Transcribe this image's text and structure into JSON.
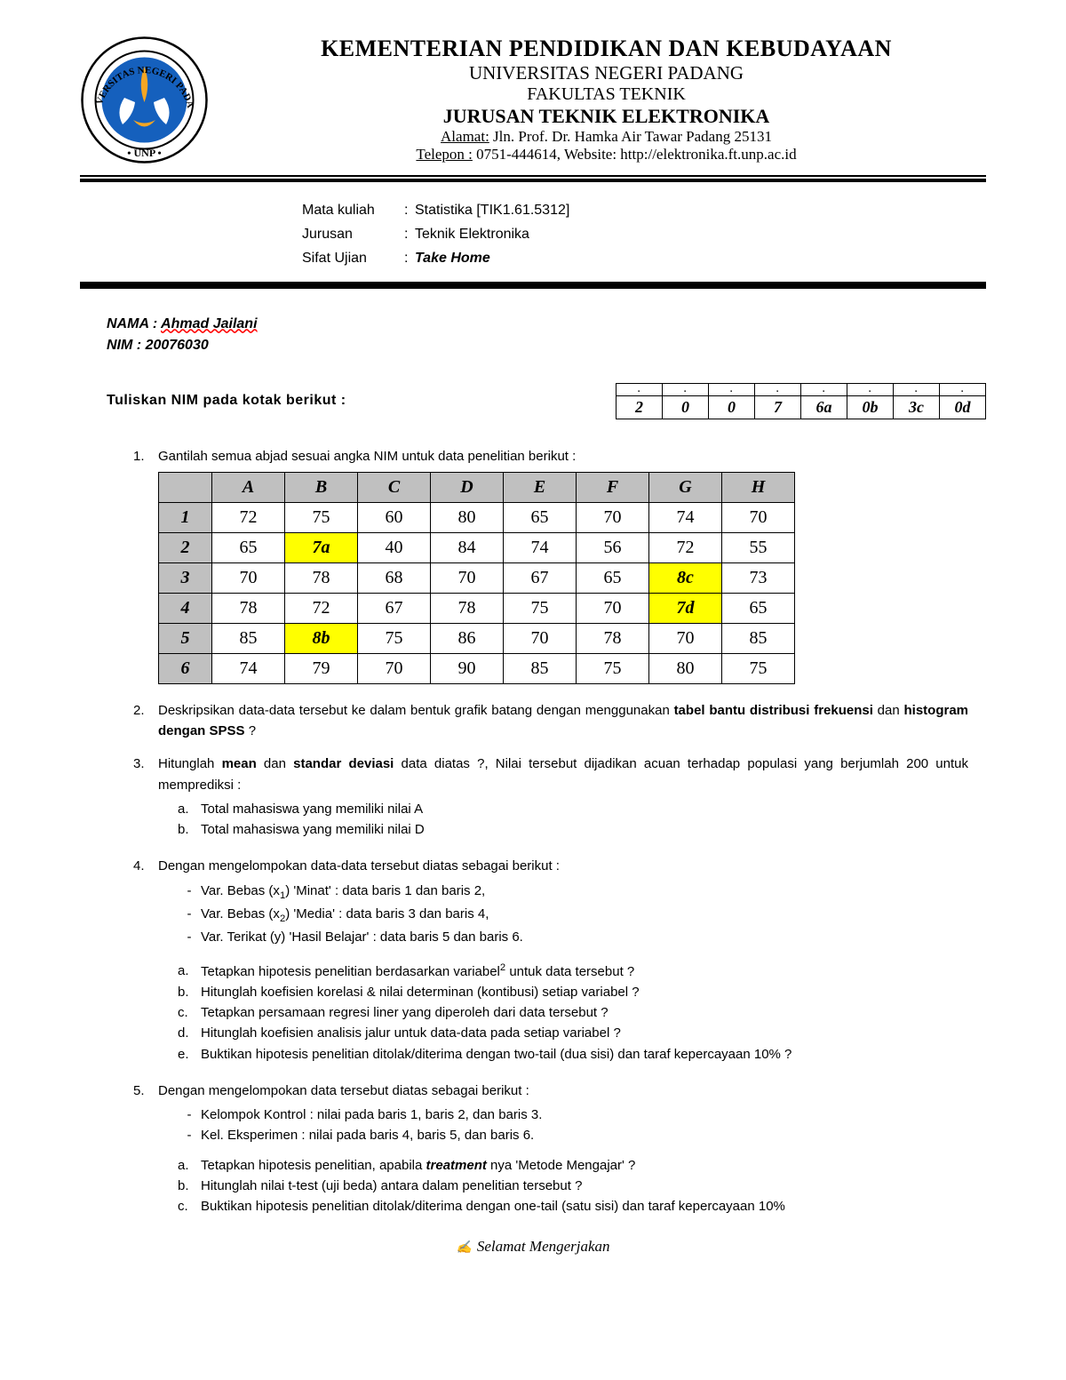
{
  "letterhead": {
    "line1": "KEMENTERIAN PENDIDIKAN DAN KEBUDAYAAN",
    "line2": "UNIVERSITAS NEGERI PADANG",
    "line3": "FAKULTAS TEKNIK",
    "line4": "JURUSAN TEKNIK ELEKTRONIKA",
    "addr_label": "Alamat:",
    "addr_value": " Jln. Prof. Dr. Hamka Air Tawar Padang 25131",
    "tel_label": "Telepon :",
    "tel_value": " 0751-444614, Website: http://elektronika.ft.unp.ac.id",
    "logo_outer_text": "UNIVERSITAS NEGERI PADANG",
    "logo_bottom": "• UNP •",
    "logo_colors": {
      "ring_bg": "#ffffff",
      "ring_border": "#000000",
      "inner_circle": "#1560bd",
      "flame": "#f5a623",
      "wings": "#ffffff"
    }
  },
  "course": {
    "mk_label": "Mata kuliah",
    "mk_value": "Statistika [TIK1.61.5312]",
    "jur_label": "Jurusan",
    "jur_value": "Teknik Elektronika",
    "sifat_label": "Sifat Ujian",
    "sifat_value": "Take Home"
  },
  "student": {
    "nama_label": "NAMA  :",
    "nama_value": "Ahmad Jailani",
    "nim_label": "NIM :",
    "nim_value": "20076030"
  },
  "nim_box": {
    "prompt": "Tuliskan NIM pada  kotak  berikut  :",
    "top_row": [
      ".",
      ".",
      ".",
      ".",
      ".",
      ".",
      ".",
      "."
    ],
    "cells": [
      "2",
      "0",
      "0",
      "7",
      "6a",
      "0b",
      "3c",
      "0d"
    ]
  },
  "q1": {
    "num": "1.",
    "text": "Gantilah semua abjad sesuai angka NIM untuk data penelitian berikut :",
    "headers": [
      "A",
      "B",
      "C",
      "D",
      "E",
      "F",
      "G",
      "H"
    ],
    "rownums": [
      "1",
      "2",
      "3",
      "4",
      "5",
      "6"
    ],
    "rows": [
      [
        "72",
        "75",
        "60",
        "80",
        "65",
        "70",
        "74",
        "70"
      ],
      [
        "65",
        "7a",
        "40",
        "84",
        "74",
        "56",
        "72",
        "55"
      ],
      [
        "70",
        "78",
        "68",
        "70",
        "67",
        "65",
        "8c",
        "73"
      ],
      [
        "78",
        "72",
        "67",
        "78",
        "75",
        "70",
        "7d",
        "65"
      ],
      [
        "85",
        "8b",
        "75",
        "86",
        "70",
        "78",
        "70",
        "85"
      ],
      [
        "74",
        "79",
        "70",
        "90",
        "85",
        "75",
        "80",
        "75"
      ]
    ],
    "highlights": [
      [
        1,
        1
      ],
      [
        2,
        6
      ],
      [
        3,
        6
      ],
      [
        4,
        1
      ]
    ],
    "highlight_color": "#ffff00",
    "header_bg": "#c0c0c0"
  },
  "q2": {
    "num": "2.",
    "pre": "Deskripsikan   data-data   tersebut   ke   dalam   bentuk   grafik   batang   dengan menggunakan ",
    "b1": "tabel bantu distribusi frekuensi",
    "mid": " dan ",
    "b2": "histogram dengan SPSS",
    "post": " ?"
  },
  "q3": {
    "num": "3.",
    "pre": "Hitunglah ",
    "b1": "mean",
    "mid1": " dan ",
    "b2": "standar deviasi",
    "post": " data diatas ?, Nilai tersebut dijadikan acuan terhadap populasi yang berjumlah 200 untuk memprediksi :",
    "a": "Total mahasiswa yang memiliki nilai  A",
    "b": "Total mahasiswa yang memiliki nilai  D"
  },
  "q4": {
    "num": "4.",
    "intro": "Dengan mengelompokan data-data tersebut diatas sebagai berikut :",
    "d1a": "Var. Bebas (x",
    "d1b": ") 'Minat'   : data baris 1 dan baris 2,",
    "d2a": "Var. Bebas (x",
    "d2b": ") 'Media' : data baris 3 dan baris 4,",
    "d3": "Var. Terikat (y) 'Hasil Belajar' : data baris 5 dan baris 6.",
    "a_pre": "Tetapkan hipotesis penelitian berdasarkan variabel",
    "a_post": " untuk data tersebut ?",
    "b": "Hitunglah koefisien korelasi & nilai determinan (kontibusi) setiap variabel ?",
    "c": "Tetapkan persamaan regresi liner yang diperoleh dari data tersebut ?",
    "d": "Hitunglah koefisien analisis jalur untuk data-data pada setiap variabel ?",
    "e": "Buktikan hipotesis penelitian ditolak/diterima dengan two-tail (dua sisi) dan taraf kepercayaan 10% ?"
  },
  "q5": {
    "num": "5.",
    "intro": "Dengan mengelompokan data tersebut diatas sebagai berikut :",
    "d1": "Kelompok Kontrol : nilai pada baris 1, baris 2, dan baris 3.",
    "d2": "Kel. Eksperimen    : nilai pada baris 4, baris 5, dan baris 6.",
    "a_pre": "Tetapkan hipotesis penelitian, apabila ",
    "a_b": "treatment",
    "a_post": " nya 'Metode Mengajar' ?",
    "b": "Hitunglah nilai t-test (uji beda) antara dalam penelitian tersebut ?",
    "c": "Buktikan hipotesis penelitian ditolak/diterima dengan one-tail (satu sisi) dan taraf kepercayaan 10%"
  },
  "footer": {
    "sig": "✍",
    "text": "Selamat  Mengerjakan"
  },
  "marks": {
    "a": "a.",
    "b": "b.",
    "c": "c.",
    "d": "d.",
    "e": "e.",
    "dash": "-"
  }
}
